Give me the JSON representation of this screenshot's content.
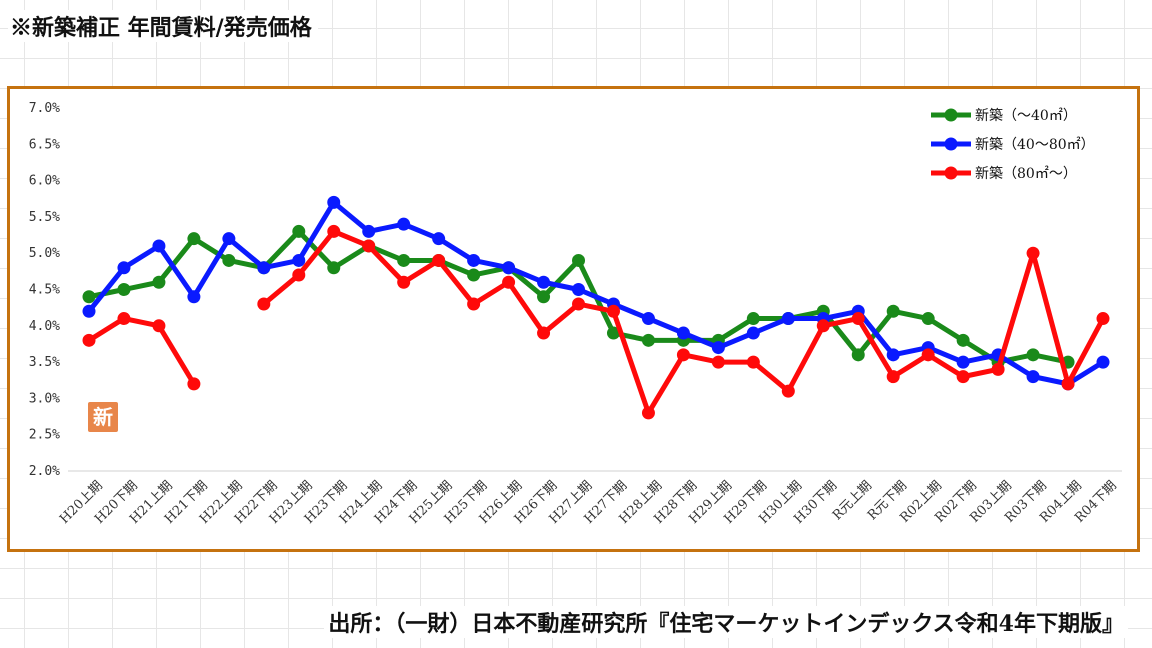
{
  "header": {
    "title": "※新築補正 年間賃料/発売価格"
  },
  "badge": {
    "text": "新"
  },
  "footer": {
    "source": "出所：（一財）日本不動産研究所『住宅マーケットインデックス令和4年下期版』"
  },
  "chart_data": {
    "type": "line",
    "title": "",
    "xlabel": "",
    "ylabel": "",
    "ylim": [
      2.0,
      7.0
    ],
    "yticks": [
      "2.0%",
      "2.5%",
      "3.0%",
      "3.5%",
      "4.0%",
      "4.5%",
      "5.0%",
      "5.5%",
      "6.0%",
      "6.5%",
      "7.0%"
    ],
    "categories": [
      "H20上期",
      "H20下期",
      "H21上期",
      "H21下期",
      "H22上期",
      "H22下期",
      "H23上期",
      "H23下期",
      "H24上期",
      "H24下期",
      "H25上期",
      "H25下期",
      "H26上期",
      "H26下期",
      "H27上期",
      "H27下期",
      "H28上期",
      "H28下期",
      "H29上期",
      "H29下期",
      "H30上期",
      "H30下期",
      "R元上期",
      "R元下期",
      "R02上期",
      "R02下期",
      "R03上期",
      "R03下期",
      "R04上期",
      "R04下期"
    ],
    "grid": false,
    "legend_position": "top-right",
    "series": [
      {
        "name": "新築（～40㎡）",
        "color": "#1a8a1a",
        "values": [
          4.4,
          4.5,
          4.6,
          5.2,
          4.9,
          4.8,
          5.3,
          4.8,
          5.1,
          4.9,
          4.9,
          4.7,
          4.8,
          4.4,
          4.9,
          3.9,
          3.8,
          3.8,
          3.8,
          4.1,
          4.1,
          4.2,
          3.6,
          4.2,
          4.1,
          3.8,
          3.5,
          3.6,
          3.5,
          null
        ]
      },
      {
        "name": "新築（40～80㎡）",
        "color": "#0a1aff",
        "values": [
          4.2,
          4.8,
          5.1,
          4.4,
          5.2,
          4.8,
          4.9,
          5.7,
          5.3,
          5.4,
          5.2,
          4.9,
          4.8,
          4.6,
          4.5,
          4.3,
          4.1,
          3.9,
          3.7,
          3.9,
          4.1,
          4.1,
          4.2,
          3.6,
          3.7,
          3.5,
          3.6,
          3.3,
          3.2,
          3.5
        ]
      },
      {
        "name": "新築（80㎡～）",
        "color": "#ff0a0a",
        "values": [
          3.8,
          4.1,
          4.0,
          3.2,
          null,
          4.3,
          4.7,
          5.3,
          5.1,
          4.6,
          4.9,
          4.3,
          4.6,
          3.9,
          4.3,
          4.2,
          2.8,
          3.6,
          3.5,
          3.5,
          3.1,
          4.0,
          4.1,
          3.3,
          3.6,
          3.3,
          3.4,
          5.0,
          3.2,
          4.1
        ]
      }
    ]
  }
}
